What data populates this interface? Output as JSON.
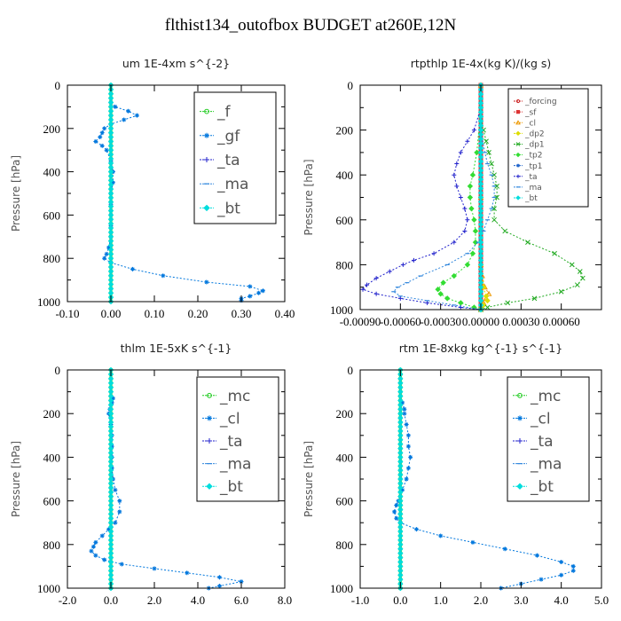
{
  "page": {
    "title": "flthist134_outofbox  BUDGET at260E,12N"
  },
  "chart_data": [
    {
      "type": "line",
      "title": "um  1E-4xm s^{-2}",
      "ylabel": "Pressure [hPa]",
      "xlim": [
        -0.1,
        0.4
      ],
      "ylim": [
        1000,
        0
      ],
      "y_inverted": true,
      "xticks": [
        "-0.10",
        "0.00",
        "0.10",
        "0.20",
        "0.30",
        "0.40"
      ],
      "yticks": [
        "0",
        "200",
        "400",
        "600",
        "800",
        "1000"
      ],
      "legend": {
        "position": "top-right",
        "size": "large"
      },
      "series": [
        {
          "name": "_f",
          "color": "#22cc22",
          "marker": "circle",
          "y": [
            0,
            100,
            200,
            300,
            400,
            500,
            600,
            700,
            800,
            900,
            1000
          ],
          "x": [
            0,
            0,
            0,
            0,
            0,
            0,
            0,
            0,
            0,
            0,
            0
          ]
        },
        {
          "name": "_gf",
          "color": "#0077dd",
          "marker": "star",
          "y": [
            80,
            100,
            120,
            140,
            160,
            180,
            200,
            220,
            240,
            260,
            280,
            300,
            350,
            400,
            450,
            500,
            550,
            600,
            650,
            700,
            750,
            780,
            800,
            820,
            850,
            880,
            910,
            930,
            950,
            960,
            975,
            985,
            995
          ],
          "x": [
            0,
            0.01,
            0.04,
            0.06,
            0.03,
            0.0,
            -0.015,
            -0.02,
            -0.025,
            -0.035,
            -0.02,
            -0.01,
            0.0,
            0.005,
            0.005,
            0.0,
            0.0,
            0.0,
            0.0,
            0.0,
            -0.005,
            -0.01,
            -0.015,
            0.0,
            0.05,
            0.12,
            0.22,
            0.32,
            0.35,
            0.34,
            0.32,
            0.3,
            0.3
          ]
        },
        {
          "name": "_ta",
          "color": "#2222cc",
          "marker": "plus",
          "y": [
            0,
            200,
            400,
            600,
            800,
            1000
          ],
          "x": [
            0,
            0,
            0,
            0,
            0,
            0
          ]
        },
        {
          "name": "_ma",
          "color": "#3388dd",
          "marker": "dash",
          "y": [
            0,
            200,
            400,
            600,
            800,
            1000
          ],
          "x": [
            0,
            0,
            0,
            0,
            0,
            0
          ]
        },
        {
          "name": "_bt",
          "color": "#00dddd",
          "marker": "diamond",
          "y": [
            0,
            200,
            400,
            600,
            800,
            1000
          ],
          "x": [
            0,
            0,
            0,
            0,
            0,
            0
          ]
        }
      ]
    },
    {
      "type": "line",
      "title": "rtpthlp  1E-4x(kg K)/(kg s)",
      "ylabel": "Pressure [hPa]",
      "xlim": [
        -0.0009,
        0.0009
      ],
      "ylim": [
        1000,
        0
      ],
      "y_inverted": true,
      "xticks": [
        "-0.00090",
        "-0.00060",
        "-0.00030",
        "0.00000",
        "0.00030",
        "0.00060"
      ],
      "yticks": [
        "0",
        "200",
        "400",
        "600",
        "800",
        "1000"
      ],
      "legend": {
        "position": "top-right",
        "size": "small"
      },
      "series": [
        {
          "name": "_forcing",
          "color": "#cc2222",
          "marker": "circle",
          "y": [
            0,
            100,
            200,
            300,
            400,
            500,
            600,
            700,
            800,
            900,
            1000
          ],
          "x": [
            0,
            0,
            0,
            0,
            0,
            0,
            0,
            0,
            0,
            0,
            0
          ]
        },
        {
          "name": "_sf",
          "color": "#dd3333",
          "marker": "square",
          "y": [
            0,
            100,
            200,
            300,
            400,
            500,
            600,
            700,
            800,
            900,
            1000
          ],
          "x": [
            0,
            0,
            0,
            0,
            0,
            0,
            0,
            0,
            0,
            0,
            0
          ]
        },
        {
          "name": "_cl",
          "color": "#ee9900",
          "marker": "triangle",
          "y": [
            0,
            500,
            800,
            850,
            900,
            930,
            950,
            970,
            990,
            1000
          ],
          "x": [
            0,
            0,
            0,
            1e-05,
            3e-05,
            6e-05,
            4e-05,
            2e-05,
            0,
            0
          ]
        },
        {
          "name": "_dp2",
          "color": "#dddd00",
          "marker": "diamond",
          "y": [
            0,
            500,
            800,
            900,
            940,
            960,
            980,
            1000
          ],
          "x": [
            0,
            0,
            0,
            2e-05,
            4e-05,
            5e-05,
            2e-05,
            0
          ]
        },
        {
          "name": "_dp1",
          "color": "#22aa22",
          "marker": "x",
          "y": [
            150,
            200,
            250,
            300,
            350,
            400,
            450,
            500,
            550,
            600,
            650,
            700,
            750,
            800,
            830,
            860,
            890,
            920,
            950,
            970,
            990,
            1000
          ],
          "x": [
            0,
            2e-05,
            4e-05,
            6e-05,
            8e-05,
            0.0001,
            0.00012,
            0.00012,
            0.0001,
            0.0001,
            0.00018,
            0.00035,
            0.00055,
            0.00068,
            0.00074,
            0.00076,
            0.00072,
            0.0006,
            0.0004,
            0.0002,
            5e-05,
            0
          ]
        },
        {
          "name": "_tp2",
          "color": "#33dd33",
          "marker": "diamond",
          "y": [
            100,
            300,
            400,
            450,
            500,
            550,
            600,
            650,
            700,
            750,
            800,
            850,
            880,
            910,
            930,
            950,
            970,
            990,
            1000
          ],
          "x": [
            0,
            -3e-05,
            -6e-05,
            -8e-05,
            -8e-05,
            -7e-05,
            -5e-05,
            -4e-05,
            -4e-05,
            -6e-05,
            -0.0001,
            -0.0002,
            -0.00028,
            -0.00032,
            -0.0003,
            -0.00025,
            -0.00015,
            -5e-05,
            0
          ]
        },
        {
          "name": "_tp1",
          "color": "#2266cc",
          "marker": "star",
          "y": [
            0,
            200,
            400,
            600,
            800,
            1000
          ],
          "x": [
            0,
            0,
            0,
            0,
            0,
            0
          ]
        },
        {
          "name": "_ta",
          "color": "#2222cc",
          "marker": "plus",
          "y": [
            100,
            200,
            250,
            300,
            350,
            400,
            450,
            500,
            550,
            600,
            650,
            700,
            750,
            780,
            800,
            830,
            860,
            890,
            910,
            930,
            950,
            970,
            990,
            1000
          ],
          "x": [
            0,
            -5e-05,
            -0.0001,
            -0.00015,
            -0.00018,
            -0.0002,
            -0.00018,
            -0.00015,
            -0.00012,
            -0.0001,
            -0.00012,
            -0.0002,
            -0.00035,
            -0.0005,
            -0.00058,
            -0.00068,
            -0.00078,
            -0.00085,
            -0.00088,
            -0.00078,
            -0.0006,
            -0.0004,
            -0.00015,
            0
          ]
        },
        {
          "name": "_ma",
          "color": "#3388dd",
          "marker": "dash",
          "y": [
            200,
            300,
            350,
            400,
            450,
            500,
            550,
            600,
            650,
            700,
            750,
            800,
            850,
            880,
            900,
            920,
            940,
            960,
            980,
            1000
          ],
          "x": [
            0,
            3e-05,
            5e-05,
            8e-05,
            0.0001,
            0.0001,
            8e-05,
            5e-05,
            2e-05,
            -2e-05,
            -0.0001,
            -0.00025,
            -0.00045,
            -0.00055,
            -0.00062,
            -0.00065,
            -0.0006,
            -0.0004,
            -0.0002,
            0
          ]
        },
        {
          "name": "_bt",
          "color": "#00dddd",
          "marker": "diamond",
          "y": [
            0,
            200,
            400,
            600,
            800,
            1000
          ],
          "x": [
            0,
            0,
            0,
            0,
            0,
            0
          ]
        }
      ]
    },
    {
      "type": "line",
      "title": "thlm  1E-5xK s^{-1}",
      "ylabel": "Pressure [hPa]",
      "xlim": [
        -2,
        8
      ],
      "ylim": [
        1000,
        0
      ],
      "y_inverted": true,
      "xticks": [
        "-2.0",
        "0.0",
        "2.0",
        "4.0",
        "6.0",
        "8.0"
      ],
      "yticks": [
        "0",
        "200",
        "400",
        "600",
        "800",
        "1000"
      ],
      "legend": {
        "position": "top-right",
        "size": "large"
      },
      "series": [
        {
          "name": "_mc",
          "color": "#22cc22",
          "marker": "circle",
          "y": [
            0,
            100,
            200,
            300,
            400,
            500,
            600,
            700,
            800,
            900,
            1000
          ],
          "x": [
            0,
            0,
            0,
            0,
            0,
            0,
            0,
            0,
            0,
            0,
            0
          ]
        },
        {
          "name": "_cl",
          "color": "#0077dd",
          "marker": "star",
          "y": [
            130,
            150,
            180,
            200,
            250,
            300,
            350,
            400,
            450,
            500,
            550,
            600,
            650,
            700,
            730,
            760,
            790,
            810,
            830,
            850,
            870,
            890,
            910,
            930,
            950,
            970,
            990,
            1000
          ],
          "x": [
            0.1,
            0.05,
            -0.05,
            -0.1,
            0.0,
            0.05,
            0.05,
            0.05,
            0.05,
            0.1,
            0.2,
            0.4,
            0.4,
            0.2,
            -0.1,
            -0.4,
            -0.7,
            -0.8,
            -0.9,
            -0.7,
            -0.3,
            0.5,
            2.0,
            3.5,
            5.0,
            6.0,
            5.0,
            4.5
          ]
        },
        {
          "name": "_ta",
          "color": "#2222cc",
          "marker": "plus",
          "y": [
            0,
            200,
            400,
            600,
            800,
            1000
          ],
          "x": [
            0,
            0,
            0,
            0,
            0,
            0
          ]
        },
        {
          "name": "_ma",
          "color": "#3388dd",
          "marker": "dash",
          "y": [
            0,
            200,
            400,
            600,
            800,
            1000
          ],
          "x": [
            0,
            0,
            0,
            0,
            0,
            0
          ]
        },
        {
          "name": "_bt",
          "color": "#00dddd",
          "marker": "diamond",
          "y": [
            0,
            200,
            400,
            600,
            800,
            1000
          ],
          "x": [
            0,
            0,
            0,
            0,
            0,
            0
          ]
        }
      ]
    },
    {
      "type": "line",
      "title": "rtm  1E-8xkg kg^{-1} s^{-1}",
      "ylabel": "Pressure [hPa]",
      "xlim": [
        -1,
        5
      ],
      "ylim": [
        1000,
        0
      ],
      "y_inverted": true,
      "xticks": [
        "-1.0",
        "0.0",
        "1.0",
        "2.0",
        "3.0",
        "4.0",
        "5.0"
      ],
      "yticks": [
        "0",
        "200",
        "400",
        "600",
        "800",
        "1000"
      ],
      "legend": {
        "position": "top-right",
        "size": "large"
      },
      "series": [
        {
          "name": "_mc",
          "color": "#22cc22",
          "marker": "circle",
          "y": [
            0,
            100,
            200,
            300,
            400,
            500,
            600,
            700,
            800,
            900,
            1000
          ],
          "x": [
            0,
            0,
            0,
            0,
            0,
            0,
            0,
            0,
            0,
            0,
            0
          ]
        },
        {
          "name": "_cl",
          "color": "#0077dd",
          "marker": "star",
          "y": [
            150,
            180,
            200,
            250,
            300,
            350,
            400,
            450,
            500,
            550,
            600,
            620,
            650,
            680,
            700,
            730,
            760,
            790,
            820,
            850,
            880,
            900,
            920,
            940,
            960,
            980,
            1000
          ],
          "x": [
            0.05,
            0.1,
            0.1,
            0.15,
            0.2,
            0.2,
            0.25,
            0.2,
            0.15,
            0.05,
            -0.05,
            -0.1,
            -0.15,
            -0.1,
            0.0,
            0.4,
            1.0,
            1.8,
            2.6,
            3.4,
            4.0,
            4.3,
            4.3,
            4.0,
            3.5,
            3.0,
            2.5
          ]
        },
        {
          "name": "_ta",
          "color": "#2222cc",
          "marker": "plus",
          "y": [
            0,
            200,
            400,
            600,
            800,
            1000
          ],
          "x": [
            0,
            0,
            0,
            0,
            0,
            0
          ]
        },
        {
          "name": "_ma",
          "color": "#3388dd",
          "marker": "dash",
          "y": [
            0,
            200,
            400,
            600,
            800,
            1000
          ],
          "x": [
            0,
            0,
            0,
            0,
            0,
            0
          ]
        },
        {
          "name": "_bt",
          "color": "#00dddd",
          "marker": "diamond",
          "y": [
            0,
            200,
            400,
            600,
            800,
            1000
          ],
          "x": [
            0,
            0,
            0,
            0,
            0,
            0
          ]
        }
      ]
    }
  ]
}
